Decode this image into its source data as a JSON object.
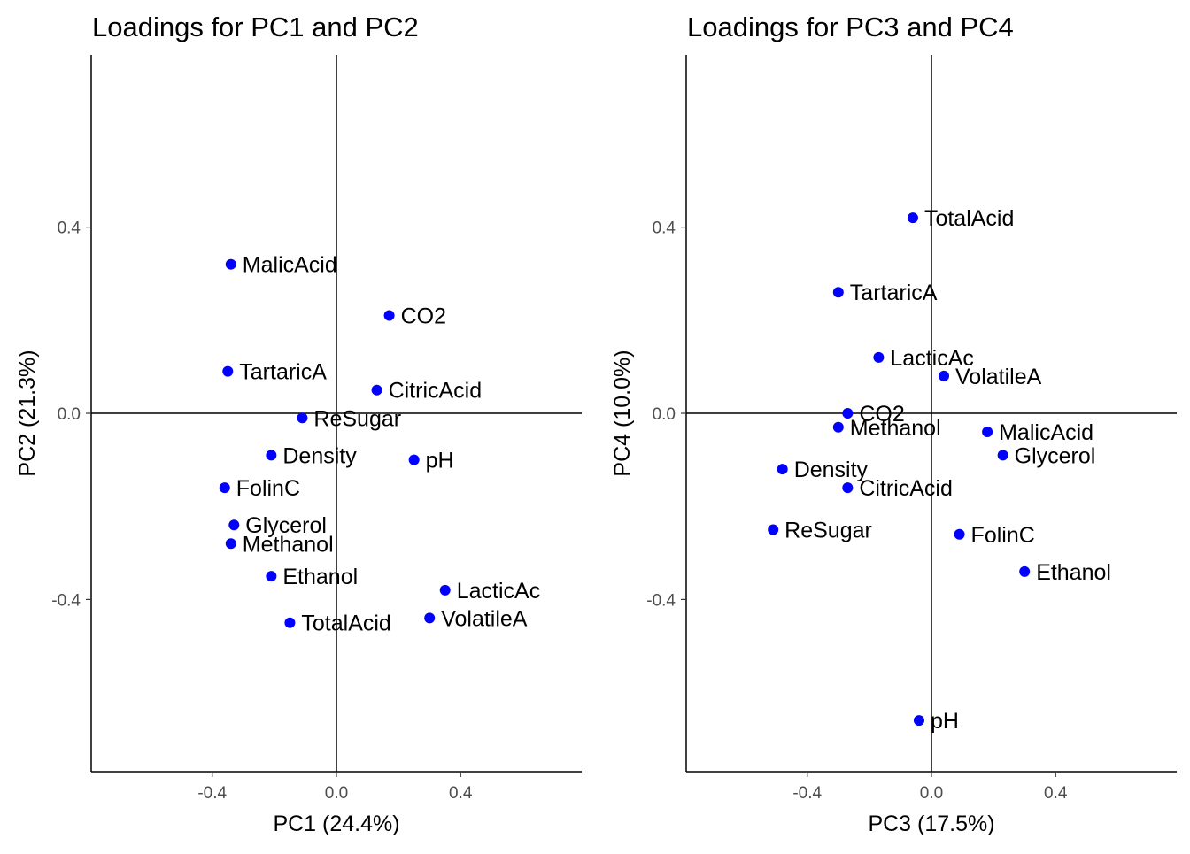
{
  "chart_data": [
    {
      "type": "scatter",
      "title": "Loadings for PC1 and PC2",
      "xlabel": "PC1 (24.4%)",
      "ylabel": "PC2 (21.3%)",
      "xlim": [
        -0.79,
        0.79
      ],
      "ylim": [
        -0.77,
        0.77
      ],
      "x_ticks": [
        -0.4,
        0.0,
        0.4
      ],
      "y_ticks": [
        -0.4,
        0.0,
        0.4
      ],
      "x_tick_labels": [
        "-0.4",
        "0.0",
        "0.4"
      ],
      "y_tick_labels": [
        "-0.4",
        "0.0",
        "0.4"
      ],
      "grid": false,
      "reference_lines": [
        0,
        0
      ],
      "point_color": "#0000ff",
      "points": [
        {
          "label": "MalicAcid",
          "x": -0.34,
          "y": 0.32
        },
        {
          "label": "CO2",
          "x": 0.17,
          "y": 0.21
        },
        {
          "label": "TartaricA",
          "x": -0.35,
          "y": 0.09
        },
        {
          "label": "CitricAcid",
          "x": 0.13,
          "y": 0.05
        },
        {
          "label": "ReSugar",
          "x": -0.11,
          "y": -0.01
        },
        {
          "label": "Density",
          "x": -0.21,
          "y": -0.09
        },
        {
          "label": "pH",
          "x": 0.25,
          "y": -0.1
        },
        {
          "label": "FolinC",
          "x": -0.36,
          "y": -0.16
        },
        {
          "label": "Glycerol",
          "x": -0.33,
          "y": -0.24
        },
        {
          "label": "Methanol",
          "x": -0.34,
          "y": -0.28
        },
        {
          "label": "Ethanol",
          "x": -0.21,
          "y": -0.35
        },
        {
          "label": "LacticAc",
          "x": 0.35,
          "y": -0.38
        },
        {
          "label": "VolatileA",
          "x": 0.3,
          "y": -0.44
        },
        {
          "label": "TotalAcid",
          "x": -0.15,
          "y": -0.45
        }
      ]
    },
    {
      "type": "scatter",
      "title": "Loadings for PC3 and PC4",
      "xlabel": "PC3 (17.5%)",
      "ylabel": "PC4 (10.0%)",
      "xlim": [
        -0.79,
        0.79
      ],
      "ylim": [
        -0.77,
        0.77
      ],
      "x_ticks": [
        -0.4,
        0.0,
        0.4
      ],
      "y_ticks": [
        -0.4,
        0.0,
        0.4
      ],
      "x_tick_labels": [
        "-0.4",
        "0.0",
        "0.4"
      ],
      "y_tick_labels": [
        "-0.4",
        "0.0",
        "0.4"
      ],
      "grid": false,
      "reference_lines": [
        0,
        0
      ],
      "point_color": "#0000ff",
      "points": [
        {
          "label": "TotalAcid",
          "x": -0.06,
          "y": 0.42
        },
        {
          "label": "TartaricA",
          "x": -0.3,
          "y": 0.26
        },
        {
          "label": "LacticAc",
          "x": -0.17,
          "y": 0.12
        },
        {
          "label": "VolatileA",
          "x": 0.04,
          "y": 0.08
        },
        {
          "label": "CO2",
          "x": -0.27,
          "y": 0.0
        },
        {
          "label": "Methanol",
          "x": -0.3,
          "y": -0.03
        },
        {
          "label": "MalicAcid",
          "x": 0.18,
          "y": -0.04
        },
        {
          "label": "Glycerol",
          "x": 0.23,
          "y": -0.09
        },
        {
          "label": "Density",
          "x": -0.48,
          "y": -0.12
        },
        {
          "label": "CitricAcid",
          "x": -0.27,
          "y": -0.16
        },
        {
          "label": "ReSugar",
          "x": -0.51,
          "y": -0.25
        },
        {
          "label": "FolinC",
          "x": 0.09,
          "y": -0.26
        },
        {
          "label": "Ethanol",
          "x": 0.3,
          "y": -0.34
        },
        {
          "label": "pH",
          "x": -0.04,
          "y": -0.66
        }
      ]
    }
  ]
}
